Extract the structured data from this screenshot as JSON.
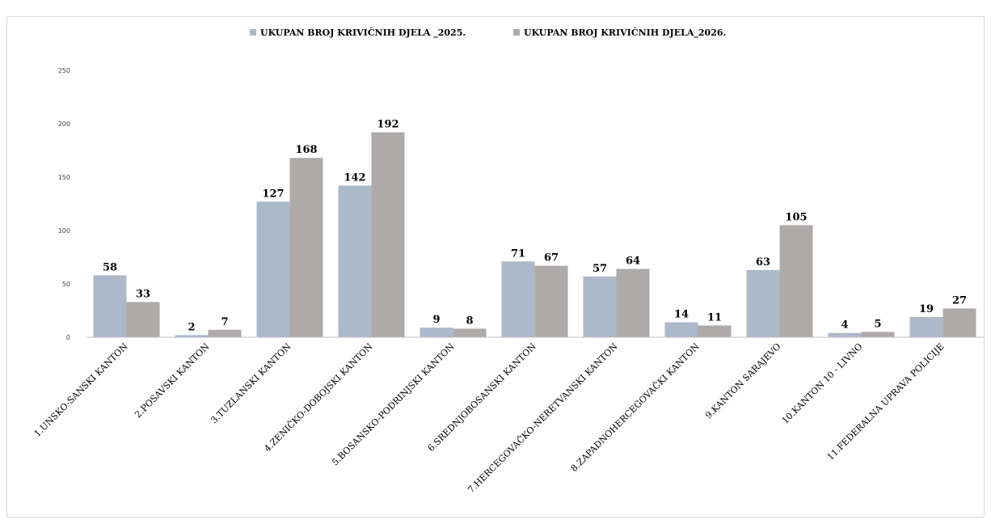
{
  "chart_data": {
    "type": "bar",
    "categories": [
      "1.UNSKO-SANSKI KANTON",
      "2.POSAVSKI KANTON",
      "3.TUZLANSKI KANTON",
      "4.ZENIČKO-DOBOJSKI KANTON",
      "5.BOSANSKO-PODRINJSKI KANTON",
      "6.SREDNJOBOSANSKI KANTON",
      "7.HERCEGOVAČKO-NERETVANSKI KANTON",
      "8.ZAPADNOHERCEGOVAČKI KANTON",
      "9.KANTON SARAJEVO",
      "10.KANTON 10 - LIVNO",
      "11.FEDERALNA UPRAVA POLICIJE"
    ],
    "series": [
      {
        "name": "UKUPAN BROJ KRIVIČNIH DJELA _2025.",
        "color": "#acb9ca",
        "values": [
          58,
          2,
          127,
          142,
          9,
          71,
          57,
          14,
          63,
          4,
          19
        ]
      },
      {
        "name": "UKUPAN BROJ  KRIVIČNIH DJELA_2026.",
        "color": "#aeaaaa",
        "values": [
          33,
          7,
          168,
          192,
          8,
          67,
          64,
          11,
          105,
          5,
          27
        ]
      }
    ],
    "ylim": [
      0,
      250
    ],
    "yticks": [
      0,
      50,
      100,
      150,
      200,
      250
    ],
    "grid": false,
    "legend_position": "top",
    "data_labels": true
  }
}
